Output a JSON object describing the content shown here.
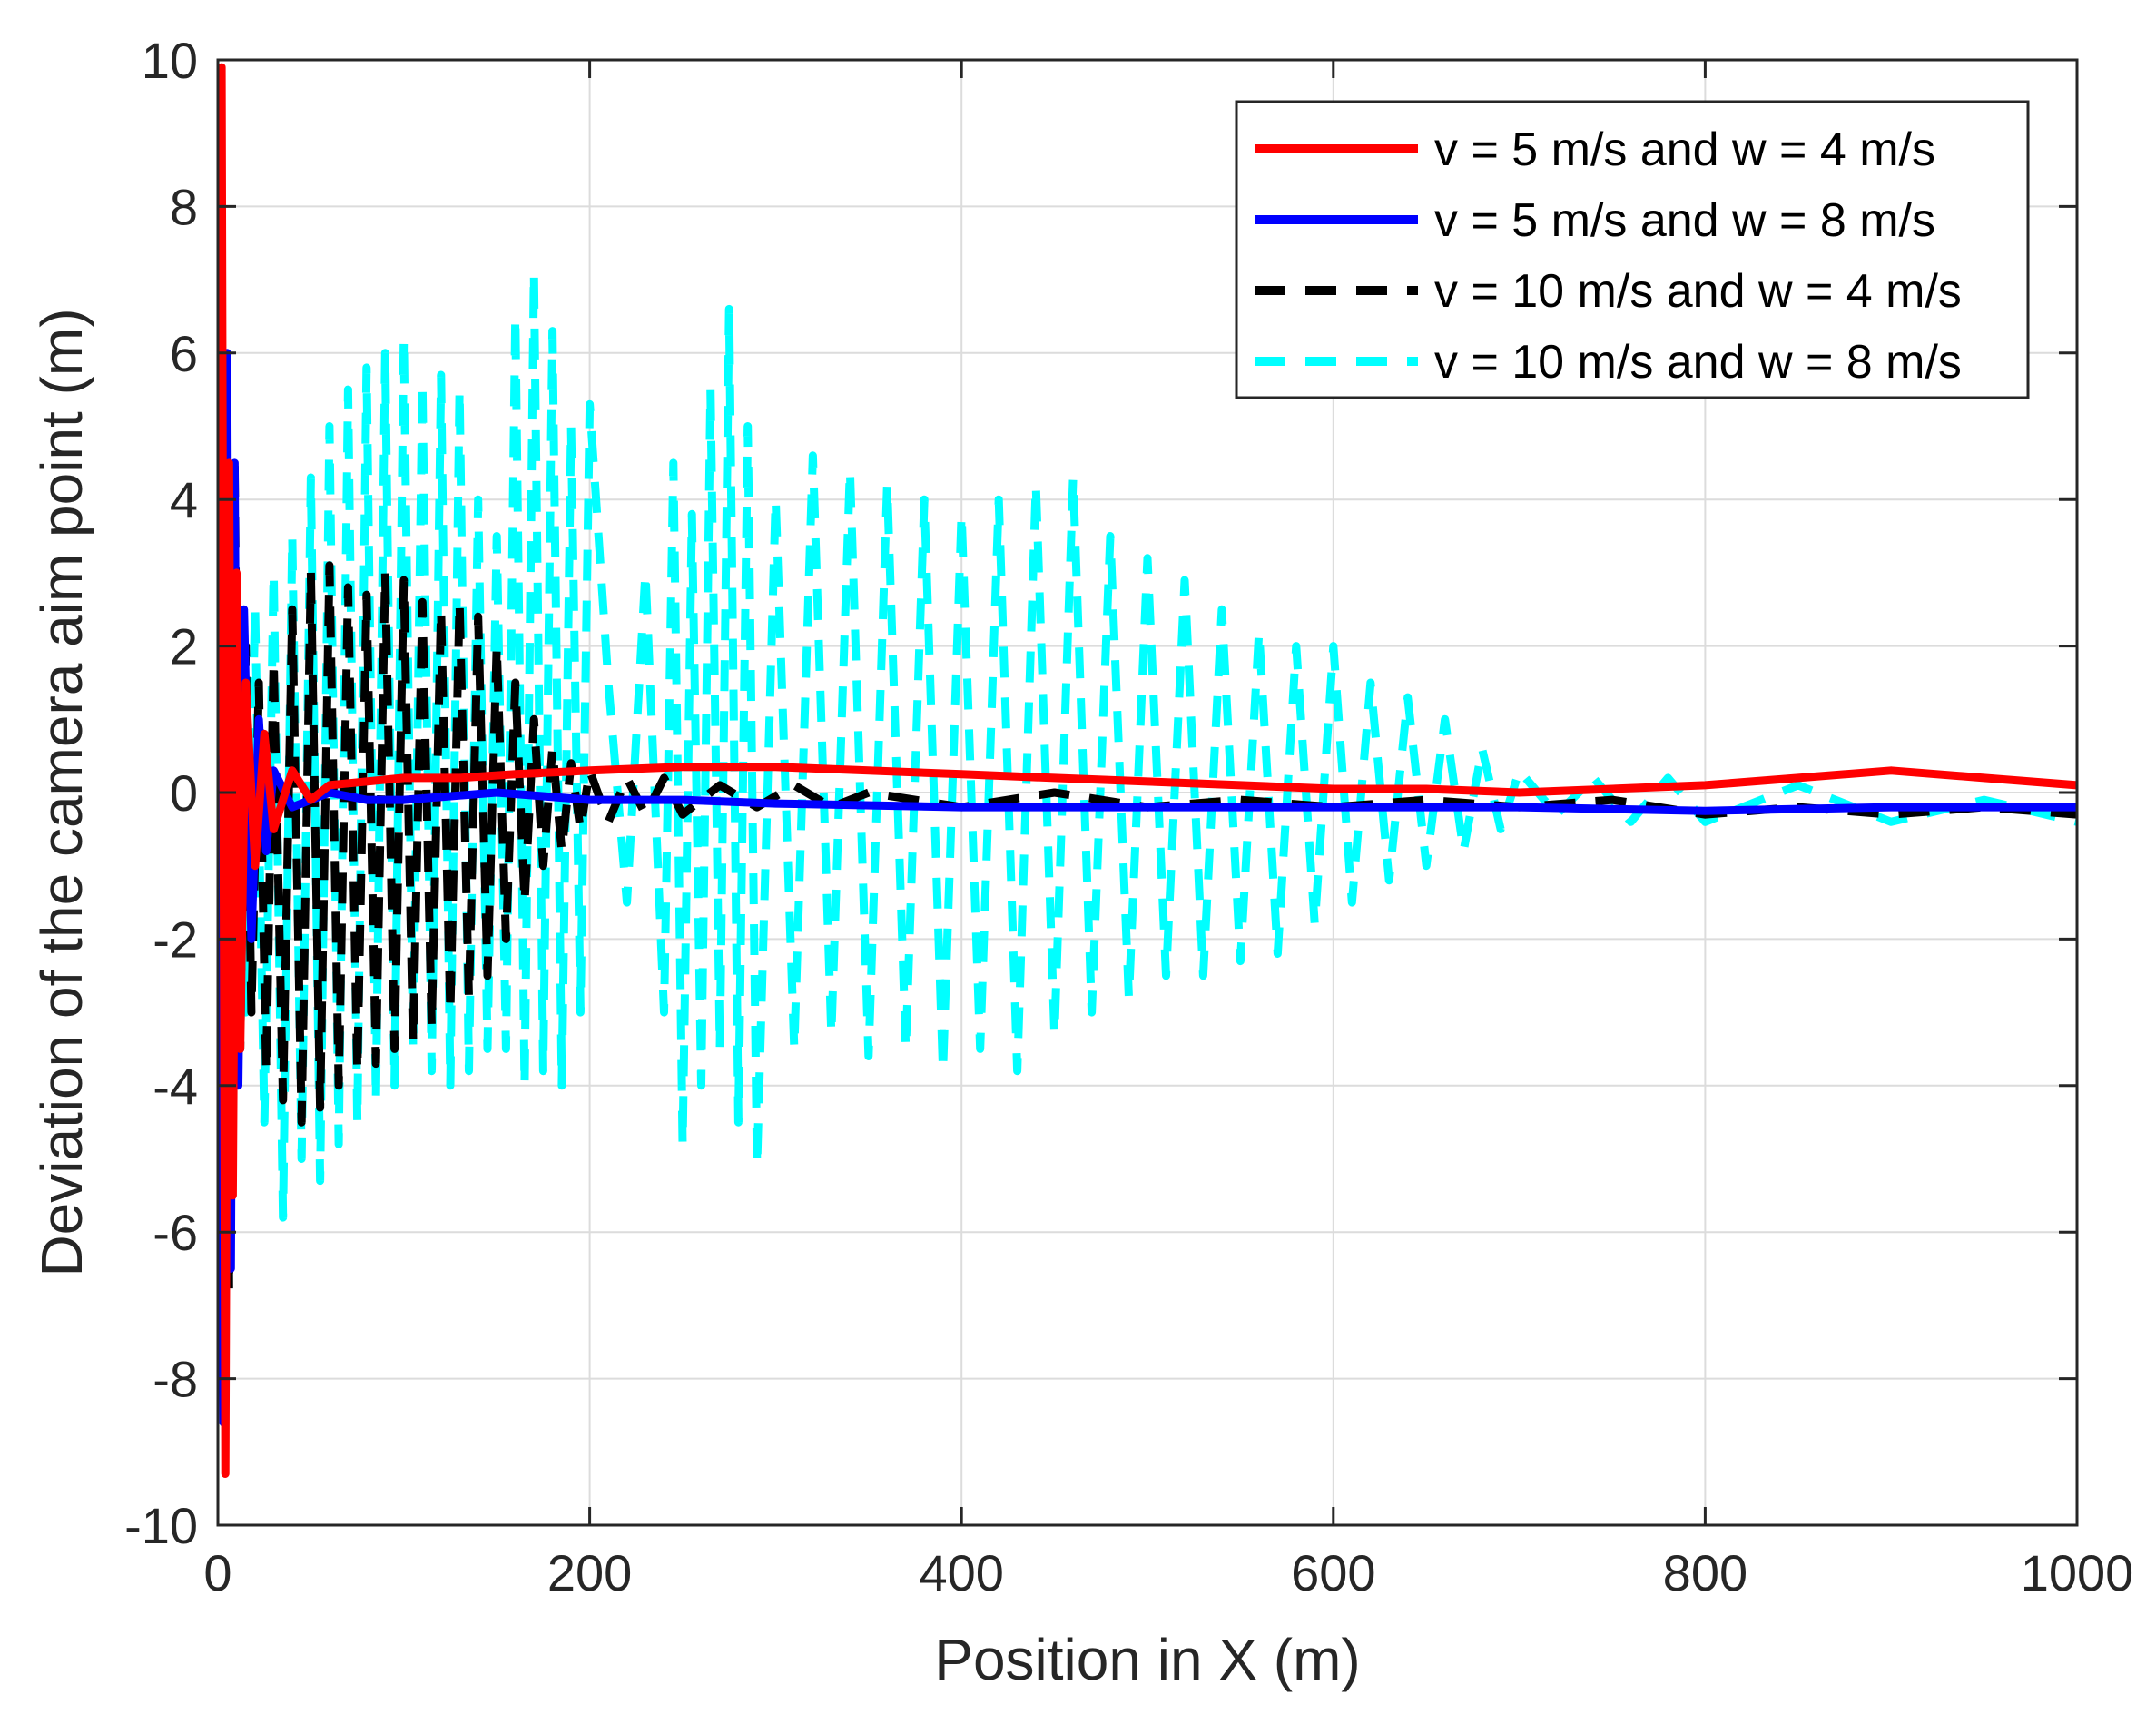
{
  "chart_data": {
    "type": "line",
    "title": "",
    "xlabel": "Position in X (m)",
    "ylabel": "Deviation of the camera aim point (m)",
    "xlim": [
      0,
      1000
    ],
    "ylim": [
      -10,
      10
    ],
    "xticks": [
      0,
      200,
      400,
      600,
      800,
      1000
    ],
    "yticks": [
      -10,
      -8,
      -6,
      -4,
      -2,
      0,
      2,
      4,
      6,
      8,
      10
    ],
    "xtick_labels": [
      "0",
      "200",
      "400",
      "600",
      "800",
      "1000"
    ],
    "ytick_labels": [
      "-10",
      "-8",
      "-6",
      "-4",
      "-2",
      "0",
      "2",
      "4",
      "6",
      "8",
      "10"
    ],
    "grid": true,
    "legend_position": "top-right",
    "series": [
      {
        "name": "v = 5 m/s and w = 4 m/s",
        "color": "#ff0000",
        "style": "solid",
        "x": [
          0,
          2,
          4,
          6,
          8,
          10,
          12,
          15,
          20,
          25,
          30,
          40,
          50,
          60,
          80,
          100,
          130,
          160,
          200,
          250,
          300,
          350,
          400,
          450,
          500,
          550,
          600,
          650,
          700,
          750,
          800,
          850,
          900,
          950,
          1000
        ],
        "y": [
          0.5,
          9.9,
          -9.3,
          4.5,
          -5.5,
          3.0,
          -3.5,
          1.5,
          -1.0,
          0.8,
          -0.5,
          0.3,
          -0.1,
          0.1,
          0.15,
          0.2,
          0.2,
          0.25,
          0.3,
          0.35,
          0.35,
          0.3,
          0.25,
          0.2,
          0.15,
          0.1,
          0.05,
          0.05,
          0.0,
          0.05,
          0.1,
          0.2,
          0.3,
          0.2,
          0.1
        ]
      },
      {
        "name": "v = 5 m/s and w = 8 m/s",
        "color": "#0000ff",
        "style": "solid",
        "x": [
          0,
          1,
          3,
          5,
          7,
          9,
          11,
          14,
          18,
          22,
          26,
          30,
          40,
          60,
          80,
          100,
          150,
          200,
          250,
          300,
          400,
          500,
          600,
          700,
          800,
          900,
          1000
        ],
        "y": [
          0.0,
          8.9,
          -8.6,
          6.0,
          -6.5,
          4.5,
          -4.0,
          2.5,
          -2.0,
          1.0,
          -0.8,
          0.3,
          -0.2,
          0.0,
          -0.1,
          -0.1,
          0.0,
          -0.1,
          -0.1,
          -0.15,
          -0.2,
          -0.2,
          -0.2,
          -0.2,
          -0.25,
          -0.2,
          -0.2
        ]
      },
      {
        "name": "v = 10 m/s and w = 4 m/s",
        "color": "#000000",
        "style": "dashed",
        "x": [
          0,
          3,
          6,
          9,
          12,
          15,
          18,
          22,
          26,
          30,
          35,
          40,
          45,
          50,
          55,
          60,
          65,
          70,
          75,
          80,
          85,
          90,
          95,
          100,
          105,
          110,
          115,
          120,
          125,
          130,
          135,
          140,
          145,
          150,
          155,
          160,
          165,
          170,
          175,
          180,
          185,
          190,
          195,
          200,
          210,
          220,
          230,
          240,
          250,
          270,
          290,
          310,
          330,
          350,
          400,
          450,
          500,
          550,
          600,
          650,
          700,
          750,
          800,
          850,
          900,
          950,
          1000
        ],
        "y": [
          0.0,
          5.5,
          -6.8,
          4.5,
          -3.5,
          2.0,
          -3.0,
          1.5,
          -3.8,
          1.8,
          -4.2,
          2.5,
          -4.5,
          3.0,
          -4.3,
          3.1,
          -4.0,
          2.8,
          -3.8,
          2.7,
          -3.7,
          3.0,
          -3.5,
          2.9,
          -3.4,
          2.6,
          -3.2,
          2.5,
          -3.0,
          2.6,
          -2.8,
          2.4,
          -2.5,
          2.0,
          -2.0,
          1.5,
          -1.5,
          1.0,
          -1.0,
          0.6,
          -0.8,
          0.4,
          -0.5,
          0.3,
          -0.4,
          0.2,
          -0.3,
          0.2,
          -0.3,
          0.1,
          -0.2,
          0.1,
          -0.2,
          0.0,
          -0.2,
          0.0,
          -0.2,
          -0.1,
          -0.2,
          -0.1,
          -0.2,
          -0.1,
          -0.3,
          -0.2,
          -0.3,
          -0.2,
          -0.3
        ]
      },
      {
        "name": "v = 10 m/s and w = 8 m/s",
        "color": "#00ffff",
        "style": "dashed",
        "x": [
          0,
          3,
          6,
          10,
          15,
          20,
          25,
          30,
          35,
          40,
          45,
          50,
          55,
          60,
          65,
          70,
          75,
          80,
          85,
          90,
          95,
          100,
          105,
          110,
          115,
          120,
          125,
          130,
          135,
          140,
          145,
          150,
          155,
          160,
          165,
          170,
          175,
          180,
          185,
          190,
          195,
          200,
          210,
          220,
          230,
          240,
          245,
          250,
          255,
          260,
          265,
          270,
          275,
          280,
          285,
          290,
          300,
          310,
          320,
          330,
          340,
          350,
          360,
          370,
          380,
          390,
          400,
          410,
          420,
          430,
          440,
          450,
          460,
          470,
          480,
          490,
          500,
          510,
          520,
          530,
          540,
          550,
          560,
          570,
          580,
          590,
          600,
          610,
          620,
          630,
          640,
          650,
          660,
          670,
          680,
          690,
          700,
          720,
          740,
          760,
          780,
          800,
          850,
          900,
          950,
          1000
        ],
        "y": [
          0.0,
          5.0,
          -2.5,
          2.8,
          -3.0,
          2.5,
          -4.5,
          3.0,
          -5.8,
          3.5,
          -5.0,
          4.3,
          -5.3,
          5.0,
          -4.8,
          5.5,
          -4.5,
          5.8,
          -4.2,
          6.0,
          -4.0,
          6.2,
          -3.5,
          5.6,
          -3.8,
          5.7,
          -4.0,
          5.5,
          -3.8,
          4.0,
          -3.5,
          3.5,
          -3.5,
          6.5,
          -4.0,
          7.1,
          -3.8,
          6.3,
          -4.0,
          5.0,
          -3.0,
          5.3,
          1.5,
          -1.5,
          3.0,
          -3.0,
          4.5,
          -4.8,
          3.8,
          -4.0,
          5.5,
          -3.5,
          6.6,
          -4.5,
          5.0,
          -5.1,
          4.0,
          -3.5,
          4.6,
          -3.3,
          4.4,
          -3.6,
          4.2,
          -3.5,
          4.0,
          -3.8,
          3.8,
          -3.5,
          4.0,
          -3.8,
          4.2,
          -3.3,
          4.3,
          -3.0,
          3.5,
          -2.8,
          3.2,
          -2.5,
          2.9,
          -2.5,
          2.5,
          -2.3,
          2.2,
          -2.2,
          2.0,
          -1.8,
          2.0,
          -1.5,
          1.5,
          -1.2,
          1.3,
          -1.0,
          1.0,
          -0.8,
          0.6,
          -0.5,
          0.3,
          -0.3,
          0.2,
          -0.4,
          0.2,
          -0.4,
          0.1,
          -0.4,
          -0.1,
          -0.4
        ]
      }
    ]
  }
}
